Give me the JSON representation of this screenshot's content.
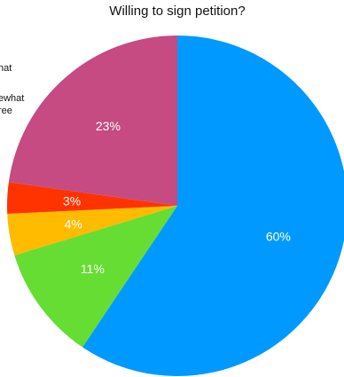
{
  "chart_data": {
    "type": "pie",
    "title": "Willing to sign petition?",
    "slices": [
      {
        "label": "",
        "value": 60,
        "color": "#0099ff"
      },
      {
        "label": "",
        "value": 11,
        "color": "#66dd33"
      },
      {
        "label": "",
        "value": 4,
        "color": "#ffbb00"
      },
      {
        "label": "",
        "value": 3,
        "color": "#ff3300"
      },
      {
        "label": "",
        "value": 23,
        "color": "#c54b82"
      }
    ],
    "value_labels": [
      "60%",
      "11%",
      "4%",
      "3%",
      "23%"
    ],
    "legend": {
      "placement": "left (cut off)",
      "entries": [
        "hat",
        "ewhat",
        "ree"
      ]
    }
  }
}
